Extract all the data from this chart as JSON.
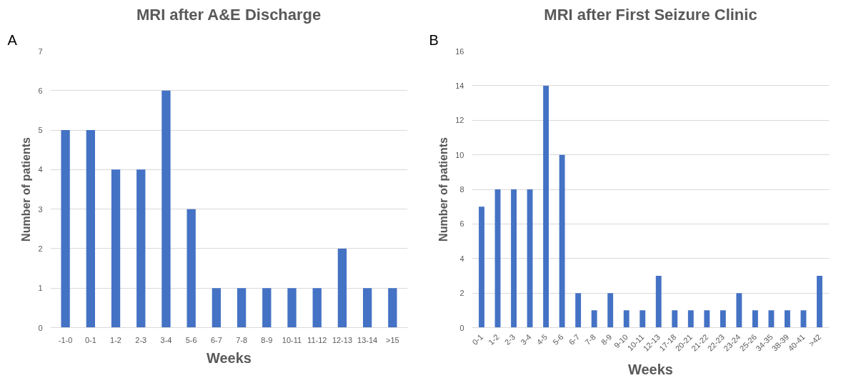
{
  "chart_data": [
    {
      "type": "bar",
      "title": "MRI after A&E Discharge",
      "xlabel": "Weeks",
      "ylabel": "Number of patients",
      "annotations": [
        "A"
      ],
      "categories": [
        "-1-0",
        "0-1",
        "1-2",
        "2-3",
        "3-4",
        "5-6",
        "6-7",
        "7-8",
        "8-9",
        "10-11",
        "11-12",
        "12-13",
        "13-14",
        ">15"
      ],
      "values": [
        5,
        5,
        4,
        4,
        6,
        3,
        1,
        1,
        1,
        1,
        1,
        2,
        1,
        1
      ],
      "color": "#4472c4",
      "ylim": [
        0,
        7
      ],
      "yticks": [
        0,
        1,
        2,
        3,
        4,
        5,
        6,
        7
      ],
      "grid": "y"
    },
    {
      "type": "bar",
      "title": "MRI after First Seizure Clinic",
      "xlabel": "Weeks",
      "ylabel": "Number of patients",
      "annotations": [
        "B"
      ],
      "categories": [
        "0-1",
        "1-2",
        "2-3",
        "3-4",
        "4-5",
        "5-6",
        "6-7",
        "7-8",
        "8-9",
        "9-10",
        "10-11",
        "12-13",
        "17-18",
        "20-21",
        "21-22",
        "22-23",
        "23-24",
        "25-26",
        "34-35",
        "38-39",
        "40-41",
        ">42"
      ],
      "values": [
        7,
        8,
        8,
        8,
        14,
        10,
        2,
        1,
        2,
        1,
        1,
        3,
        1,
        1,
        1,
        1,
        2,
        1,
        1,
        1,
        1,
        3
      ],
      "color": "#4472c4",
      "ylim": [
        0,
        16
      ],
      "yticks": [
        0,
        2,
        4,
        6,
        8,
        10,
        12,
        14,
        16
      ],
      "grid": "y"
    }
  ]
}
